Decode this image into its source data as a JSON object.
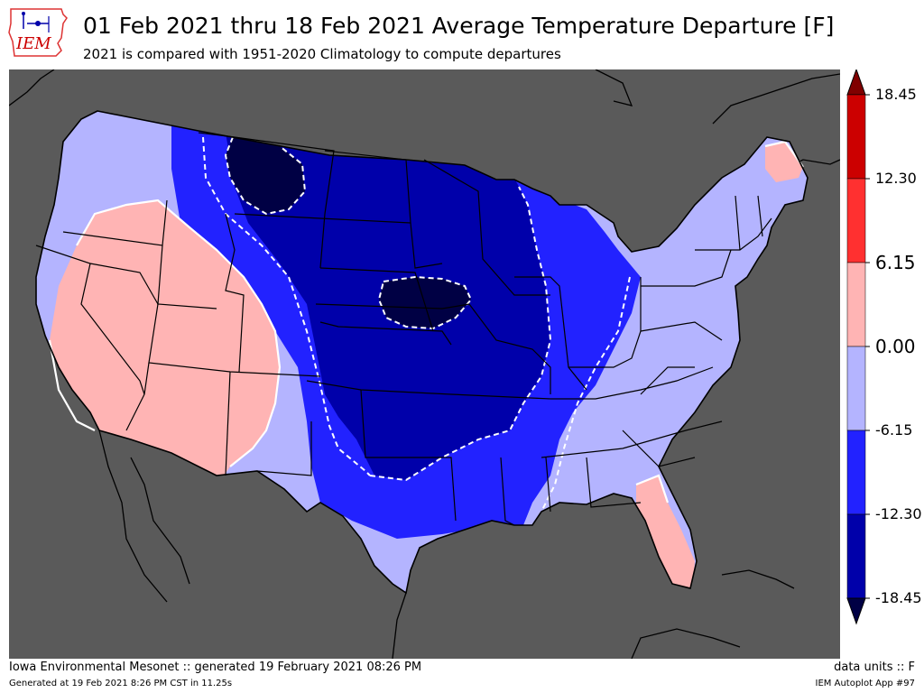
{
  "header": {
    "logo_text": "IEM",
    "title": "01 Feb 2021 thru 18 Feb 2021 Average Temperature Departure [F]",
    "subtitle": "2021 is compared with 1951-2020 Climatology to compute departures"
  },
  "map": {
    "region": "Contiguous United States",
    "background_color": "#5a5a5a",
    "colors": {
      "lt_-18.45": "#000044",
      "-18.45_-12.30": "#0000aa",
      "-12.30_-6.15": "#2222ff",
      "-6.15_0.00": "#b4b4ff",
      "0.00_6.15": "#ffb4b4",
      "6.15_12.30": "#ff3030",
      "12.30_18.45": "#cc0000",
      "gt_18.45": "#800000"
    }
  },
  "colorbar": {
    "ticks": [
      "18.45",
      "12.30",
      "6.15",
      "0.00",
      "-6.15",
      "-12.30",
      "-18.45"
    ]
  },
  "footer": {
    "left": "Iowa Environmental Mesonet :: generated 19 February 2021 08:26 PM",
    "right": "data units :: F",
    "left_small": "Generated at 19 Feb 2021 8:26 PM CST in 11.25s",
    "right_small": "IEM Autoplot App #97"
  }
}
